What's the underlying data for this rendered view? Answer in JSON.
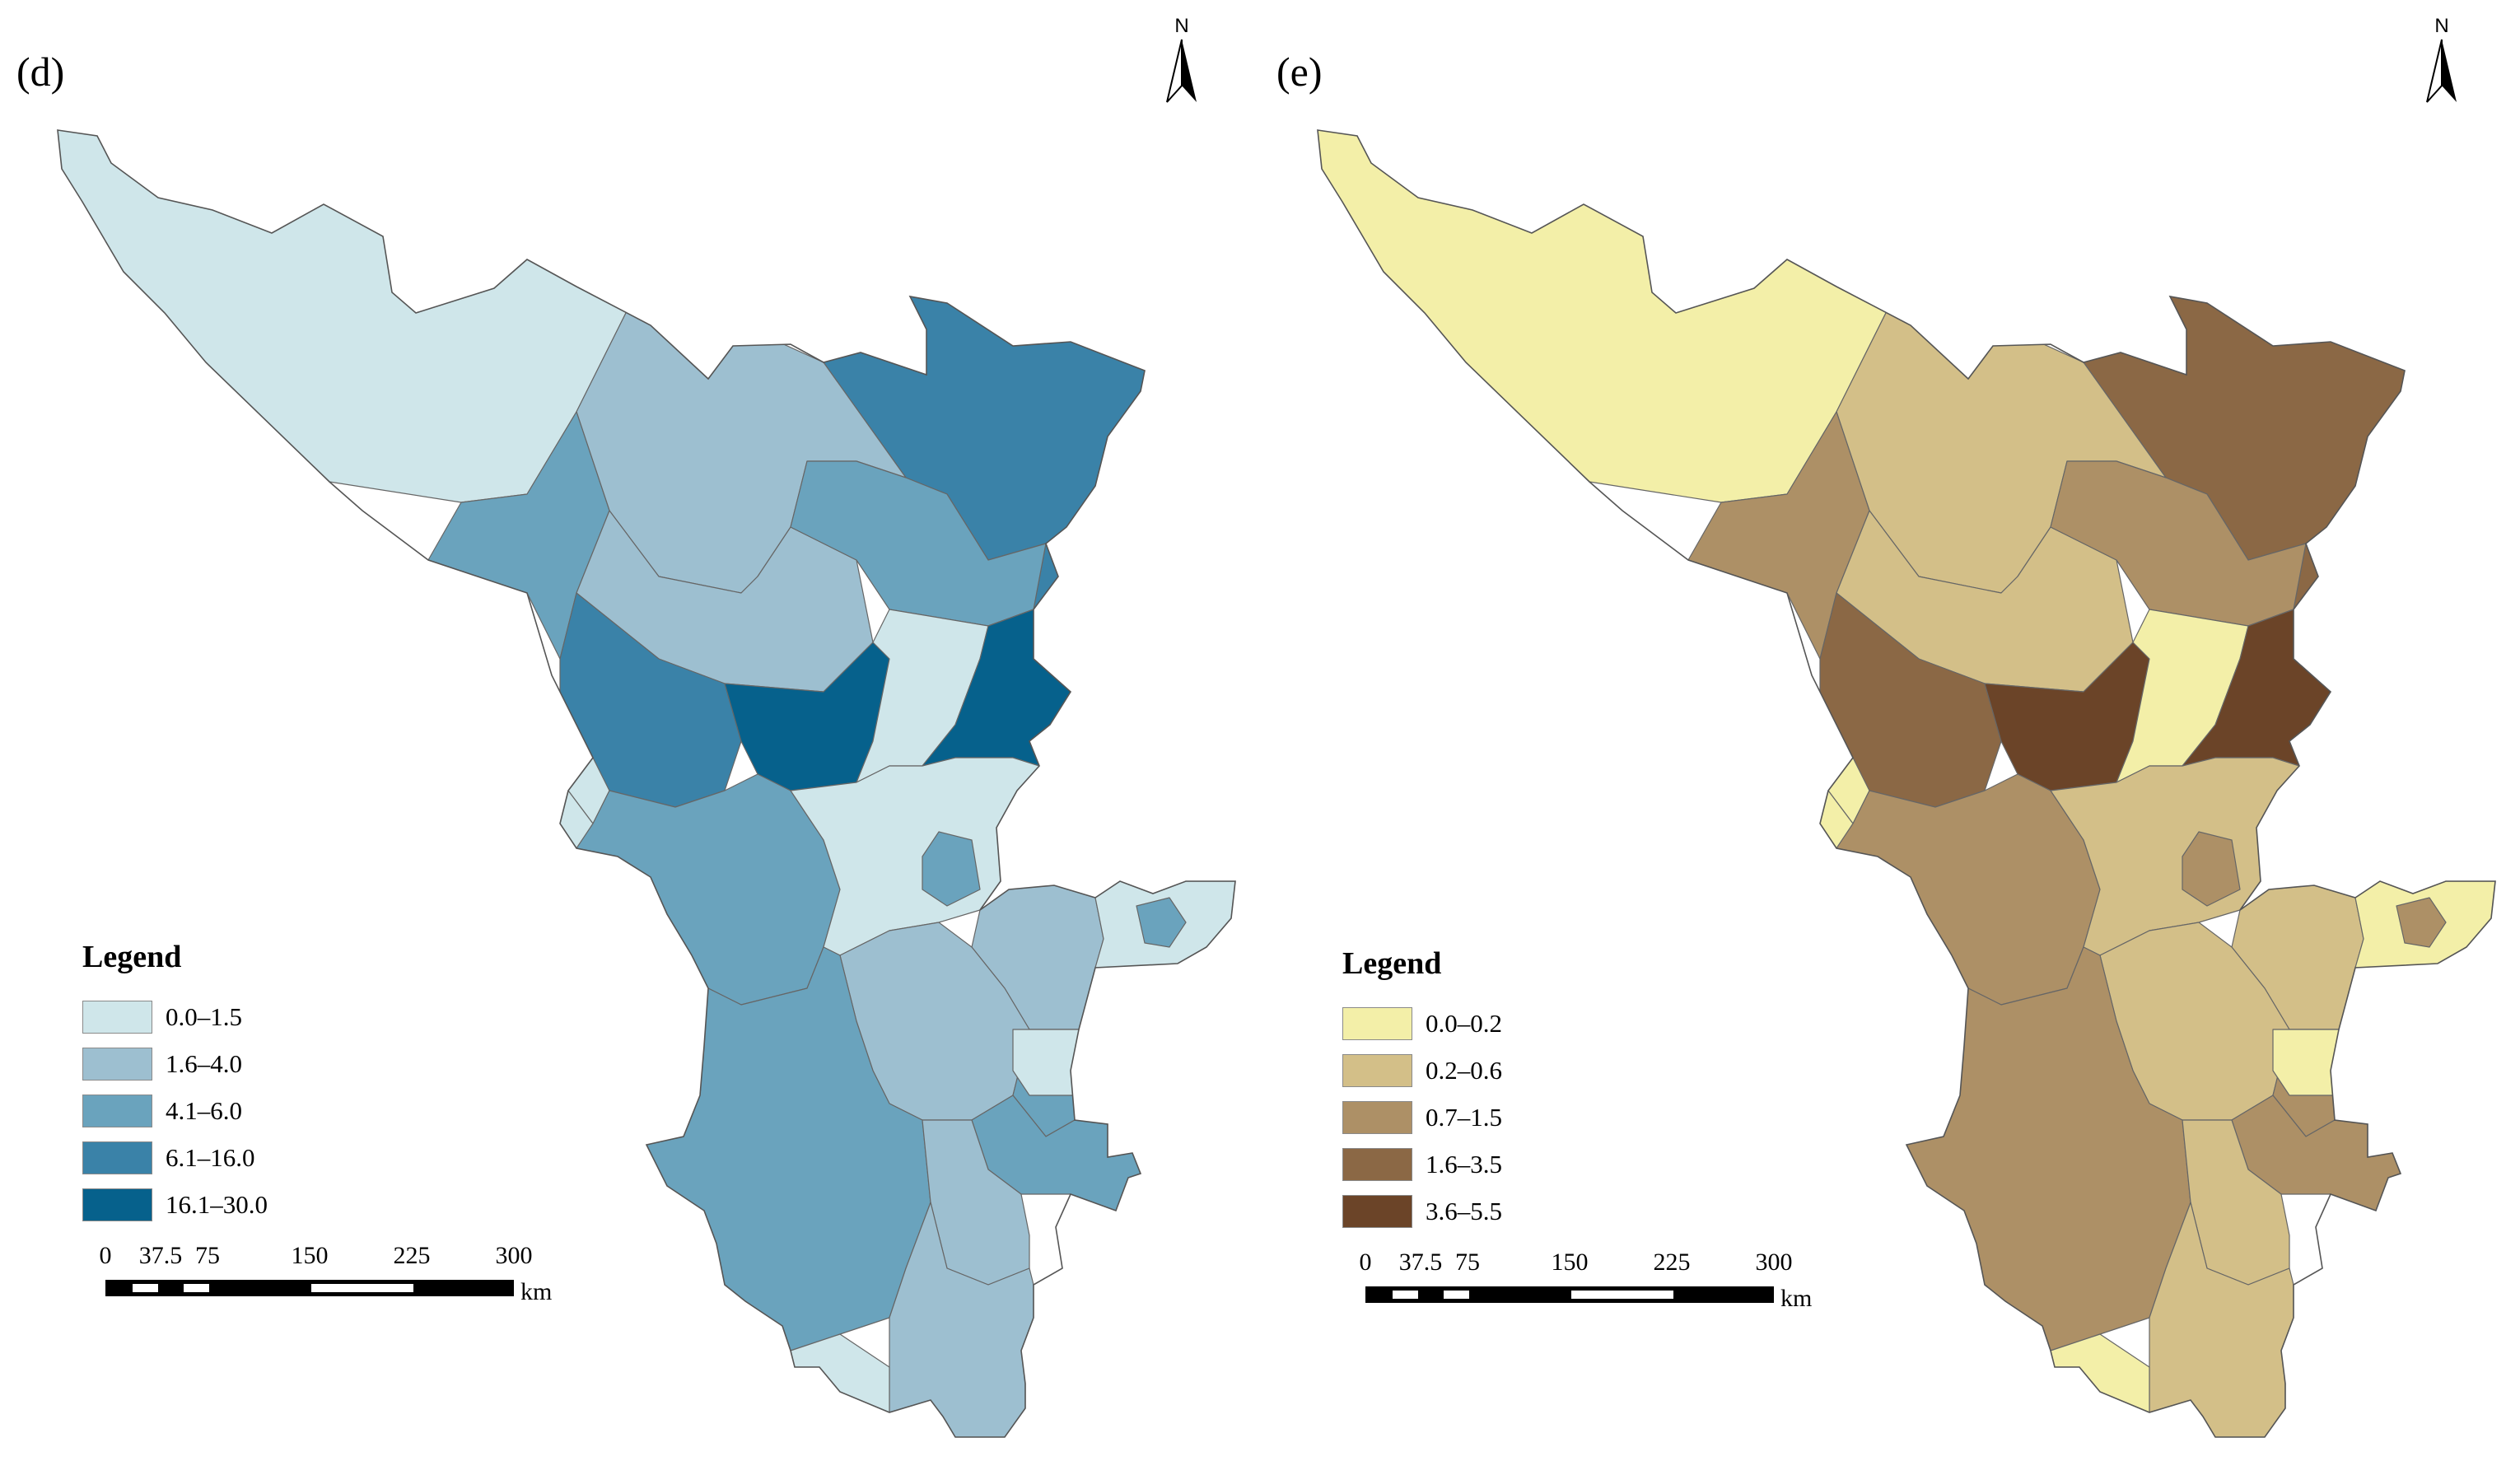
{
  "panels": [
    {
      "label": "(d)",
      "north_label": "N",
      "legend": {
        "title": "Legend",
        "items": [
          {
            "label": "0.0–1.5",
            "color": "#cfe6ea"
          },
          {
            "label": "1.6–4.0",
            "color": "#9dbfd0"
          },
          {
            "label": "4.1–6.0",
            "color": "#6aa3bd"
          },
          {
            "label": "6.1–16.0",
            "color": "#3a82a8"
          },
          {
            "label": "16.1–30.0",
            "color": "#06618c"
          }
        ]
      },
      "scale": {
        "ticks": [
          "0",
          "37.5",
          "75",
          "150",
          "225",
          "300"
        ],
        "unit": "km"
      }
    },
    {
      "label": "(e)",
      "north_label": "N",
      "legend": {
        "title": "Legend",
        "items": [
          {
            "label": "0.0–0.2",
            "color": "#f3efa8"
          },
          {
            "label": "0.2–0.6",
            "color": "#d3bf88"
          },
          {
            "label": "0.7–1.5",
            "color": "#ad9066"
          },
          {
            "label": "1.6–3.5",
            "color": "#8b6845"
          },
          {
            "label": "3.6–5.5",
            "color": "#6b4428"
          }
        ]
      },
      "scale": {
        "ticks": [
          "0",
          "37.5",
          "75",
          "150",
          "225",
          "300"
        ],
        "unit": "km"
      }
    }
  ]
}
